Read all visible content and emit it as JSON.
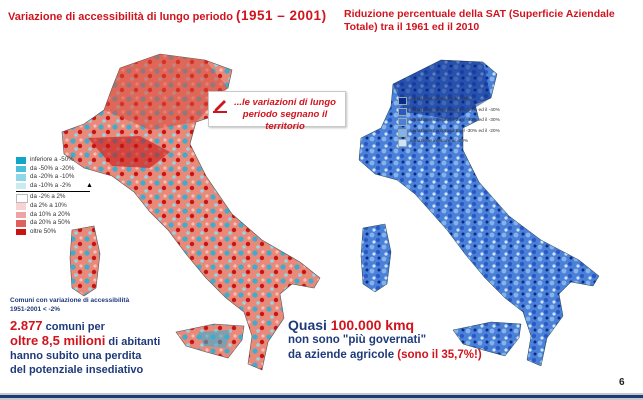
{
  "left_title": {
    "text": "Variazione di accessibilità di lungo periodo ",
    "years": "(1951 – 2001)"
  },
  "right_title": "Riduzione percentuale della SAT (Superficie Aziendale Totale) tra il 1961 ed il 2010",
  "callout": {
    "line1": "...le variazioni di lungo",
    "line2": "periodo segnano il territorio"
  },
  "legend_left": {
    "items": [
      {
        "label": "inferiore a -50%",
        "color": "#10a6c8"
      },
      {
        "label": "da -50% a -20%",
        "color": "#4bc0da"
      },
      {
        "label": "da -20% a -10%",
        "color": "#8fd6e6"
      },
      {
        "label": "da -10% a -2%",
        "color": "#cbebf2"
      },
      {
        "label": "da -2% a 2%",
        "color": "#ffffff"
      },
      {
        "label": "da 2% a 10%",
        "color": "#f7d3d3"
      },
      {
        "label": "da 10% a 20%",
        "color": "#eda3a3"
      },
      {
        "label": "da 20% a 50%",
        "color": "#e06060"
      },
      {
        "label": "oltre 50%",
        "color": "#c81414"
      }
    ]
  },
  "legend_right": {
    "items": [
      {
        "label": "variazione superiore al -60%",
        "color": "#0a2a8a"
      },
      {
        "label": "variazione compresa tra il -60% ed il -40%",
        "color": "#2a58c4"
      },
      {
        "label": "variazione compresa tra il -40% ed il -30%",
        "color": "#4a80d8"
      },
      {
        "label": "variazione compresa tra il -30% ed il -20%",
        "color": "#86b2ea"
      },
      {
        "label": "variazione inferiore al -20%",
        "color": "#cfe2f7"
      }
    ]
  },
  "sub_note": {
    "line1": "Comuni con variazione di accessibilità",
    "line2": "1951-2001 < -2%"
  },
  "stat_left": {
    "line1_num": "2.877",
    "line1_rest": " comuni per",
    "line2_num": "oltre 8,5 milioni",
    "line2_rest": " di abitanti",
    "line3": "hanno subito una perdita",
    "line4": "del potenziale insediativo"
  },
  "stat_right": {
    "line1_a": "Quasi ",
    "line1_num": "100.000 kmq",
    "line2": "non sono \"più governati\"",
    "line3_a": "da aziende agricole ",
    "line3_b": "(sono il 35,7%!)"
  },
  "page_number": "6",
  "colors": {
    "accent_red": "#d0141e",
    "navy": "#1f3a7a"
  }
}
